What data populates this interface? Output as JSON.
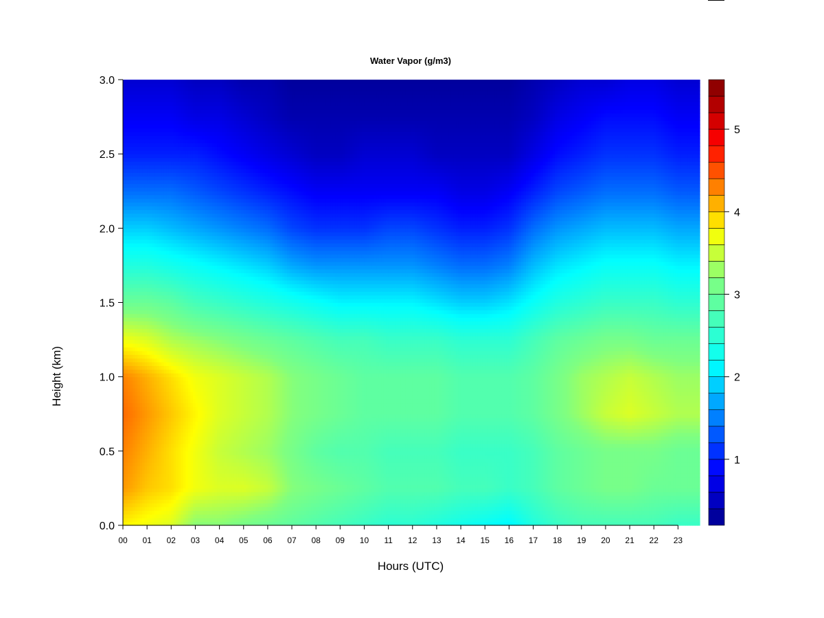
{
  "chart_data": {
    "type": "heatmap",
    "title": "Water Vapor (g/m3)",
    "xlabel": "Hours (UTC)",
    "ylabel": "Height (km)",
    "x_ticks": [
      "00",
      "01",
      "02",
      "03",
      "04",
      "05",
      "06",
      "07",
      "08",
      "09",
      "10",
      "11",
      "12",
      "13",
      "14",
      "15",
      "16",
      "17",
      "18",
      "19",
      "20",
      "21",
      "22",
      "23"
    ],
    "y_ticks": [
      "0.0",
      "0.5",
      "1.0",
      "1.5",
      "2.0",
      "2.5",
      "3.0"
    ],
    "colorbar_ticks": [
      "1",
      "2",
      "3",
      "4",
      "5"
    ],
    "xlim": [
      0,
      23.9
    ],
    "ylim": [
      0,
      3.0
    ],
    "zlim": [
      0.2,
      5.6
    ],
    "colorbar_levels": [
      0.2,
      0.4,
      0.6,
      0.8,
      1.0,
      1.2,
      1.4,
      1.6,
      1.8,
      2.0,
      2.2,
      2.4,
      2.6,
      2.8,
      3.0,
      3.2,
      3.4,
      3.6,
      3.8,
      4.0,
      4.2,
      4.4,
      4.6,
      4.8,
      5.0,
      5.2,
      5.4,
      5.6
    ],
    "heights_km": [
      0.0,
      0.25,
      0.5,
      0.75,
      1.0,
      1.25,
      1.5,
      1.75,
      2.0,
      2.25,
      2.5,
      2.75,
      3.0
    ],
    "hours": [
      0,
      1,
      2,
      3,
      4,
      5,
      6,
      7,
      8,
      9,
      10,
      11,
      12,
      13,
      14,
      15,
      16,
      17,
      18,
      19,
      20,
      21,
      22,
      23
    ],
    "values": [
      [
        3.8,
        4.2,
        4.3,
        4.4,
        4.3,
        3.7,
        3.0,
        2.4,
        1.9,
        1.4,
        1.0,
        0.8,
        0.6
      ],
      [
        3.7,
        4.0,
        4.1,
        4.2,
        4.1,
        3.6,
        3.0,
        2.4,
        1.9,
        1.4,
        1.0,
        0.8,
        0.6
      ],
      [
        3.6,
        3.9,
        3.9,
        4.0,
        3.9,
        3.4,
        2.9,
        2.3,
        1.8,
        1.4,
        1.0,
        0.8,
        0.6
      ],
      [
        3.2,
        3.7,
        3.7,
        3.8,
        3.7,
        3.3,
        2.7,
        2.2,
        1.7,
        1.3,
        1.0,
        0.7,
        0.5
      ],
      [
        3.2,
        3.6,
        3.5,
        3.6,
        3.6,
        3.2,
        2.6,
        2.1,
        1.6,
        1.2,
        0.9,
        0.7,
        0.5
      ],
      [
        3.1,
        3.6,
        3.4,
        3.5,
        3.5,
        3.1,
        2.5,
        2.0,
        1.5,
        1.1,
        0.8,
        0.6,
        0.4
      ],
      [
        3.0,
        3.5,
        3.3,
        3.4,
        3.4,
        3.0,
        2.4,
        1.9,
        1.4,
        1.0,
        0.7,
        0.5,
        0.4
      ],
      [
        2.9,
        3.2,
        3.1,
        3.2,
        3.2,
        2.9,
        2.3,
        1.7,
        1.2,
        0.9,
        0.6,
        0.4,
        0.3
      ],
      [
        2.8,
        3.1,
        2.9,
        3.1,
        3.1,
        2.8,
        2.2,
        1.6,
        1.1,
        0.8,
        0.5,
        0.4,
        0.3
      ],
      [
        2.7,
        3.0,
        2.8,
        3.0,
        3.0,
        2.7,
        2.1,
        1.6,
        1.1,
        0.8,
        0.5,
        0.4,
        0.3
      ],
      [
        2.6,
        2.9,
        2.8,
        2.9,
        2.9,
        2.7,
        2.1,
        1.6,
        1.1,
        0.8,
        0.6,
        0.4,
        0.3
      ],
      [
        2.5,
        2.8,
        2.7,
        2.9,
        2.9,
        2.6,
        2.1,
        1.6,
        1.2,
        0.8,
        0.6,
        0.4,
        0.3
      ],
      [
        2.5,
        2.8,
        2.7,
        2.9,
        2.9,
        2.6,
        2.1,
        1.6,
        1.2,
        0.8,
        0.6,
        0.4,
        0.3
      ],
      [
        2.4,
        2.8,
        2.7,
        2.9,
        2.9,
        2.6,
        2.0,
        1.5,
        1.1,
        0.8,
        0.5,
        0.4,
        0.3
      ],
      [
        2.3,
        2.7,
        2.6,
        2.8,
        2.8,
        2.5,
        1.9,
        1.4,
        1.0,
        0.7,
        0.5,
        0.4,
        0.3
      ],
      [
        2.2,
        2.7,
        2.6,
        2.8,
        2.8,
        2.5,
        1.9,
        1.4,
        1.0,
        0.7,
        0.5,
        0.4,
        0.3
      ],
      [
        2.1,
        2.6,
        2.6,
        2.8,
        2.8,
        2.5,
        2.0,
        1.5,
        1.1,
        0.8,
        0.5,
        0.4,
        0.3
      ],
      [
        2.4,
        2.7,
        2.7,
        2.9,
        2.9,
        2.7,
        2.2,
        1.8,
        1.4,
        1.0,
        0.7,
        0.5,
        0.4
      ],
      [
        2.6,
        2.9,
        2.9,
        3.1,
        3.1,
        2.9,
        2.4,
        2.0,
        1.6,
        1.2,
        0.9,
        0.7,
        0.5
      ],
      [
        2.7,
        3.0,
        3.0,
        3.3,
        3.3,
        3.0,
        2.5,
        2.1,
        1.7,
        1.3,
        1.0,
        0.8,
        0.6
      ],
      [
        2.7,
        3.1,
        3.1,
        3.5,
        3.4,
        3.1,
        2.6,
        2.2,
        1.8,
        1.4,
        1.1,
        0.9,
        0.6
      ],
      [
        2.7,
        3.1,
        3.1,
        3.6,
        3.5,
        3.1,
        2.6,
        2.2,
        1.8,
        1.4,
        1.1,
        0.9,
        0.7
      ],
      [
        2.7,
        3.0,
        3.1,
        3.5,
        3.4,
        3.0,
        2.6,
        2.2,
        1.8,
        1.4,
        1.1,
        0.9,
        0.7
      ],
      [
        2.6,
        3.0,
        3.0,
        3.4,
        3.3,
        3.0,
        2.5,
        2.1,
        1.7,
        1.3,
        1.0,
        0.8,
        0.6
      ]
    ]
  }
}
